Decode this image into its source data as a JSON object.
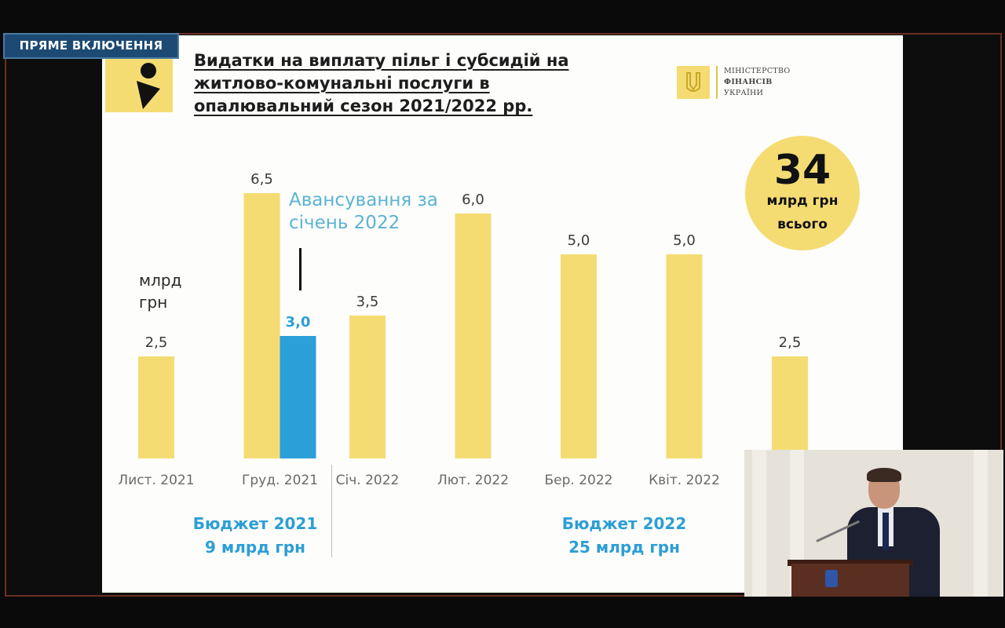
{
  "badge": {
    "label": "ПРЯМЕ ВКЛЮЧЕННЯ"
  },
  "slide": {
    "title": "Видатки на виплату пільг і субсидій на житлово-комунальні послуги в опалювальний сезон 2021/2022 рр.",
    "ministry": {
      "line1": "МІНІСТЕРСТВО",
      "line2": "ФІНАНСІВ",
      "line3": "УКРАЇНИ"
    },
    "total": {
      "value": "34",
      "unit": "млрд грн",
      "suffix": "всього"
    },
    "annotation": "Авансування за січень 2022",
    "budget_2021": {
      "line1": "Бюджет 2021",
      "line2": "9 млрд грн"
    },
    "budget_2022": {
      "line1": "Бюджет 2022",
      "line2": "25 млрд грн"
    }
  },
  "chart_data": {
    "type": "bar",
    "title": "Видатки на виплату пільг і субсидій на житлово-комунальні послуги в опалювальний сезон 2021/2022 рр.",
    "ylabel": "млрд грн",
    "ylim": [
      0,
      7
    ],
    "grid": false,
    "categories": [
      "Лист. 2021",
      "Груд. 2021",
      "Січ. 2022",
      "Лют. 2022",
      "Бер. 2022",
      "Квіт. 2022",
      ""
    ],
    "series": [
      {
        "values": [
          2.5,
          6.5,
          3.5,
          6.0,
          5.0,
          5.0,
          2.5
        ],
        "labels": [
          "2,5",
          "6,5",
          "3,5",
          "6,0",
          "5,0",
          "5,0",
          "2,5"
        ],
        "color": "#f4dc73"
      },
      {
        "values": [
          null,
          3.0,
          null,
          null,
          null,
          null,
          null
        ],
        "labels": [
          "",
          "3,0",
          "",
          "",
          "",
          "",
          ""
        ],
        "color": "#2b9fd8"
      }
    ]
  },
  "colors": {
    "yellow": "#f4dc73",
    "blue": "#2b9fd8",
    "budget_text": "#2c9ed6",
    "annotation": "#5bb3d4"
  },
  "pip": {
    "description_icon": "speaker-video-icon"
  }
}
